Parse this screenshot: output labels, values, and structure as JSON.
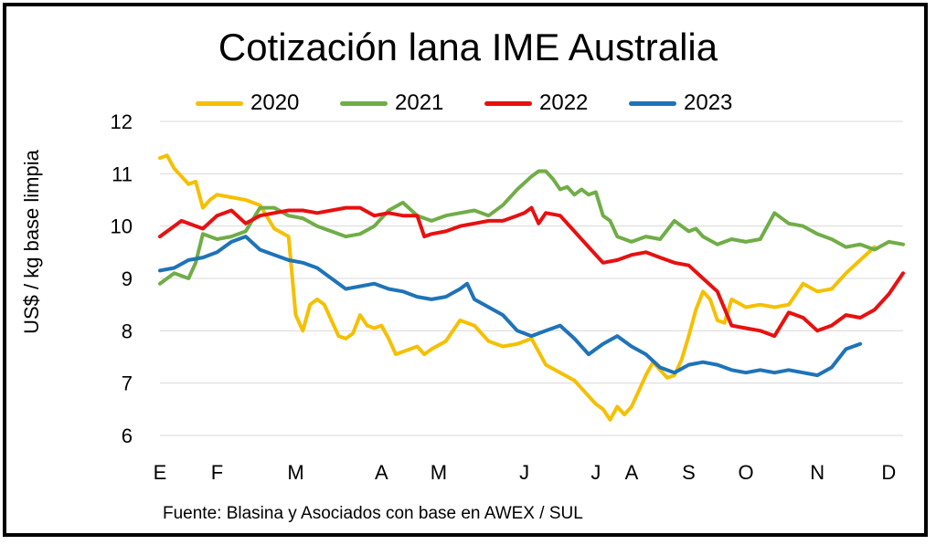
{
  "chart_data": {
    "type": "line",
    "title": "Cotización lana IME Australia",
    "ylabel": "US$ / kg base limpia",
    "source": "Fuente: Blasina y Asociados con base en AWEX / SUL",
    "ylim": [
      6,
      12
    ],
    "xlim": [
      0,
      52
    ],
    "yticks": [
      6,
      7,
      8,
      9,
      10,
      11,
      12
    ],
    "grid": true,
    "legend_position": "top",
    "month_ticks": [
      {
        "label": "E",
        "week": 0
      },
      {
        "label": "F",
        "week": 4
      },
      {
        "label": "M",
        "week": 9.5
      },
      {
        "label": "A",
        "week": 15.5
      },
      {
        "label": "M",
        "week": 19.5
      },
      {
        "label": "J",
        "week": 25.5
      },
      {
        "label": "J",
        "week": 30.5
      },
      {
        "label": "A",
        "week": 33
      },
      {
        "label": "S",
        "week": 37
      },
      {
        "label": "O",
        "week": 41
      },
      {
        "label": "N",
        "week": 46
      },
      {
        "label": "D",
        "week": 51
      }
    ],
    "series": [
      {
        "name": "2020",
        "color": "#F5C000",
        "x": [
          0,
          0.5,
          1,
          1.5,
          2,
          2.5,
          3,
          3.5,
          4,
          5,
          6,
          7,
          8,
          9,
          9.5,
          10,
          10.5,
          11,
          11.5,
          12,
          12.5,
          13,
          13.5,
          14,
          14.5,
          15,
          15.5,
          16,
          16.5,
          17,
          17.5,
          18,
          18.5,
          19,
          20,
          21,
          22,
          23,
          24,
          25,
          26,
          27,
          28,
          29,
          30,
          30.5,
          31,
          31.5,
          32,
          32.5,
          33,
          33.5,
          34,
          34.5,
          35,
          35.5,
          36,
          36.5,
          37,
          37.5,
          38,
          38.5,
          39,
          39.5,
          40,
          41,
          42,
          43,
          44,
          45,
          46,
          47,
          48,
          49,
          50
        ],
        "y": [
          11.3,
          11.35,
          11.1,
          10.95,
          10.8,
          10.85,
          10.35,
          10.5,
          10.6,
          10.55,
          10.5,
          10.4,
          9.95,
          9.8,
          8.3,
          8.0,
          8.5,
          8.6,
          8.5,
          8.2,
          7.9,
          7.85,
          7.95,
          8.3,
          8.1,
          8.05,
          8.1,
          7.85,
          7.55,
          7.6,
          7.65,
          7.7,
          7.55,
          7.65,
          7.8,
          8.2,
          8.1,
          7.8,
          7.7,
          7.75,
          7.85,
          7.35,
          7.2,
          7.05,
          6.75,
          6.6,
          6.5,
          6.3,
          6.55,
          6.4,
          6.55,
          6.85,
          7.15,
          7.4,
          7.25,
          7.1,
          7.15,
          7.45,
          7.9,
          8.4,
          8.75,
          8.6,
          8.2,
          8.15,
          8.6,
          8.45,
          8.5,
          8.45,
          8.5,
          8.9,
          8.75,
          8.8,
          9.1,
          9.35,
          9.6
        ]
      },
      {
        "name": "2021",
        "color": "#70AD47",
        "x": [
          0,
          1,
          1.5,
          2,
          2.5,
          3,
          3.5,
          4,
          5,
          6,
          7,
          8,
          9,
          10,
          11,
          12,
          13,
          14,
          15,
          16,
          17,
          18,
          19,
          20,
          21,
          22,
          23,
          24,
          25,
          26,
          26.5,
          27,
          27.5,
          28,
          28.5,
          29,
          29.5,
          30,
          30.5,
          31,
          31.5,
          32,
          33,
          34,
          35,
          36,
          36.5,
          37,
          37.5,
          38,
          39,
          40,
          41,
          42,
          43,
          44,
          45,
          46,
          47,
          48,
          49,
          50,
          51,
          52
        ],
        "y": [
          8.9,
          9.1,
          9.05,
          9.0,
          9.3,
          9.85,
          9.8,
          9.75,
          9.8,
          9.9,
          10.35,
          10.35,
          10.2,
          10.15,
          10.0,
          9.9,
          9.8,
          9.85,
          10.0,
          10.3,
          10.45,
          10.2,
          10.1,
          10.2,
          10.25,
          10.3,
          10.2,
          10.4,
          10.7,
          10.95,
          11.05,
          11.05,
          10.9,
          10.7,
          10.75,
          10.6,
          10.7,
          10.6,
          10.65,
          10.2,
          10.1,
          9.8,
          9.7,
          9.8,
          9.75,
          10.1,
          10.0,
          9.9,
          9.95,
          9.8,
          9.65,
          9.75,
          9.7,
          9.75,
          10.25,
          10.05,
          10.0,
          9.85,
          9.75,
          9.6,
          9.65,
          9.55,
          9.7,
          9.65
        ]
      },
      {
        "name": "2022",
        "color": "#E81010",
        "x": [
          0,
          1,
          1.5,
          2,
          3,
          4,
          5,
          6,
          7,
          8,
          9,
          10,
          11,
          12,
          13,
          14,
          15,
          16,
          17,
          18,
          18.5,
          19,
          20,
          21,
          22,
          23,
          24,
          25,
          25.5,
          26,
          26.5,
          27,
          28,
          29,
          30,
          31,
          32,
          33,
          34,
          35,
          36,
          37,
          38,
          39,
          40,
          41,
          42,
          43,
          44,
          45,
          46,
          47,
          48,
          49,
          50,
          51,
          52
        ],
        "y": [
          9.8,
          10.0,
          10.1,
          10.05,
          9.95,
          10.2,
          10.3,
          10.05,
          10.2,
          10.25,
          10.3,
          10.3,
          10.25,
          10.3,
          10.35,
          10.35,
          10.2,
          10.25,
          10.2,
          10.2,
          9.8,
          9.85,
          9.9,
          10.0,
          10.05,
          10.1,
          10.1,
          10.2,
          10.25,
          10.35,
          10.05,
          10.25,
          10.2,
          9.9,
          9.6,
          9.3,
          9.35,
          9.45,
          9.5,
          9.4,
          9.3,
          9.25,
          9.0,
          8.75,
          8.1,
          8.05,
          8.0,
          7.9,
          8.35,
          8.25,
          8.0,
          8.1,
          8.3,
          8.25,
          8.4,
          8.7,
          9.1
        ]
      },
      {
        "name": "2023",
        "color": "#1F73B8",
        "x": [
          0,
          1,
          2,
          3,
          4,
          5,
          5.5,
          6,
          7,
          8,
          9,
          10,
          11,
          12,
          13,
          14,
          15,
          16,
          17,
          18,
          19,
          20,
          21,
          21.5,
          22,
          23,
          24,
          25,
          26,
          27,
          28,
          29,
          30,
          31,
          32,
          33,
          34,
          35,
          36,
          37,
          38,
          39,
          40,
          41,
          42,
          43,
          44,
          45,
          46,
          47,
          48,
          49
        ],
        "y": [
          9.15,
          9.2,
          9.35,
          9.4,
          9.5,
          9.7,
          9.75,
          9.8,
          9.55,
          9.45,
          9.35,
          9.3,
          9.2,
          9.0,
          8.8,
          8.85,
          8.9,
          8.8,
          8.75,
          8.65,
          8.6,
          8.65,
          8.8,
          8.9,
          8.6,
          8.45,
          8.3,
          8.0,
          7.9,
          8.0,
          8.1,
          7.85,
          7.55,
          7.75,
          7.9,
          7.7,
          7.55,
          7.3,
          7.2,
          7.35,
          7.4,
          7.35,
          7.25,
          7.2,
          7.25,
          7.2,
          7.25,
          7.2,
          7.15,
          7.3,
          7.65,
          7.75
        ]
      }
    ]
  }
}
